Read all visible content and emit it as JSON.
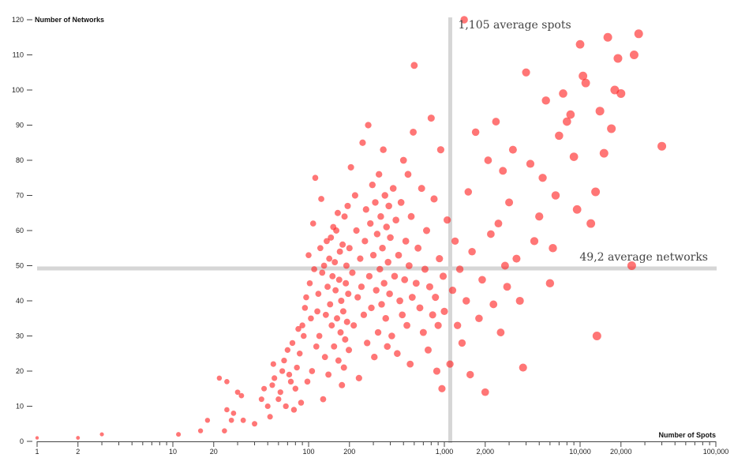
{
  "chart_data": {
    "type": "scatter",
    "title": "",
    "xlabel": "Number of Spots",
    "ylabel": "Number of Networks",
    "x_scale": "log",
    "xlim": [
      1,
      100000
    ],
    "ylim": [
      0,
      120
    ],
    "x_ticks": [
      {
        "value": 1,
        "label": "1"
      },
      {
        "value": 2,
        "label": "2"
      },
      {
        "value": 10,
        "label": "10"
      },
      {
        "value": 20,
        "label": "20"
      },
      {
        "value": 100,
        "label": "100"
      },
      {
        "value": 200,
        "label": "200"
      },
      {
        "value": 1000,
        "label": "1,000"
      },
      {
        "value": 2000,
        "label": "2,000"
      },
      {
        "value": 10000,
        "label": "10,000"
      },
      {
        "value": 20000,
        "label": "20,000"
      },
      {
        "value": 100000,
        "label": "100,000"
      }
    ],
    "y_ticks": [
      0,
      10,
      20,
      30,
      40,
      50,
      60,
      70,
      80,
      90,
      100,
      110,
      120
    ],
    "grid": false,
    "annotations": [
      {
        "text": "1,105 average spots",
        "axis": "x",
        "value": 1105
      },
      {
        "text": "49,2 average networks",
        "axis": "y",
        "value": 49.2
      }
    ],
    "colors": {
      "point": "#ff2222",
      "reference_line": "#d6d6d6"
    },
    "points": [
      [
        1,
        1
      ],
      [
        2,
        1
      ],
      [
        3,
        2
      ],
      [
        11,
        2
      ],
      [
        16,
        3
      ],
      [
        18,
        6
      ],
      [
        24,
        3
      ],
      [
        22,
        18
      ],
      [
        25,
        17
      ],
      [
        25,
        9
      ],
      [
        27,
        6
      ],
      [
        30,
        14
      ],
      [
        28,
        8
      ],
      [
        32,
        13
      ],
      [
        33,
        6
      ],
      [
        40,
        5
      ],
      [
        45,
        12
      ],
      [
        47,
        15
      ],
      [
        50,
        10
      ],
      [
        52,
        7
      ],
      [
        54,
        16
      ],
      [
        56,
        18
      ],
      [
        55,
        22
      ],
      [
        60,
        12
      ],
      [
        62,
        14
      ],
      [
        64,
        20
      ],
      [
        66,
        23
      ],
      [
        68,
        10
      ],
      [
        70,
        26
      ],
      [
        72,
        19
      ],
      [
        74,
        17
      ],
      [
        76,
        28
      ],
      [
        78,
        9
      ],
      [
        80,
        15
      ],
      [
        82,
        21
      ],
      [
        84,
        32
      ],
      [
        86,
        25
      ],
      [
        88,
        11
      ],
      [
        90,
        33
      ],
      [
        92,
        30
      ],
      [
        94,
        38
      ],
      [
        96,
        41
      ],
      [
        98,
        17
      ],
      [
        100,
        53
      ],
      [
        102,
        45
      ],
      [
        104,
        35
      ],
      [
        106,
        20
      ],
      [
        108,
        62
      ],
      [
        110,
        49
      ],
      [
        112,
        75
      ],
      [
        114,
        27
      ],
      [
        116,
        37
      ],
      [
        118,
        42
      ],
      [
        120,
        30
      ],
      [
        122,
        55
      ],
      [
        124,
        69
      ],
      [
        126,
        48
      ],
      [
        128,
        12
      ],
      [
        130,
        50
      ],
      [
        132,
        24
      ],
      [
        134,
        36
      ],
      [
        136,
        57
      ],
      [
        138,
        44
      ],
      [
        140,
        19
      ],
      [
        142,
        52
      ],
      [
        144,
        39
      ],
      [
        146,
        58
      ],
      [
        148,
        33
      ],
      [
        150,
        47
      ],
      [
        152,
        61
      ],
      [
        154,
        27
      ],
      [
        156,
        51
      ],
      [
        158,
        43
      ],
      [
        160,
        60
      ],
      [
        162,
        35
      ],
      [
        164,
        65
      ],
      [
        166,
        23
      ],
      [
        168,
        46
      ],
      [
        170,
        54
      ],
      [
        172,
        31
      ],
      [
        174,
        40
      ],
      [
        176,
        16
      ],
      [
        178,
        56
      ],
      [
        180,
        37
      ],
      [
        182,
        21
      ],
      [
        184,
        64
      ],
      [
        186,
        29
      ],
      [
        188,
        45
      ],
      [
        190,
        50
      ],
      [
        192,
        34
      ],
      [
        194,
        67
      ],
      [
        196,
        42
      ],
      [
        198,
        26
      ],
      [
        200,
        55
      ],
      [
        205,
        78
      ],
      [
        210,
        48
      ],
      [
        215,
        33
      ],
      [
        220,
        70
      ],
      [
        225,
        60
      ],
      [
        230,
        41
      ],
      [
        235,
        18
      ],
      [
        240,
        52
      ],
      [
        245,
        44
      ],
      [
        250,
        85
      ],
      [
        255,
        36
      ],
      [
        260,
        57
      ],
      [
        265,
        66
      ],
      [
        270,
        28
      ],
      [
        275,
        90
      ],
      [
        280,
        47
      ],
      [
        285,
        62
      ],
      [
        290,
        38
      ],
      [
        295,
        73
      ],
      [
        300,
        53
      ],
      [
        305,
        24
      ],
      [
        310,
        68
      ],
      [
        315,
        43
      ],
      [
        320,
        59
      ],
      [
        325,
        31
      ],
      [
        330,
        76
      ],
      [
        335,
        49
      ],
      [
        340,
        64
      ],
      [
        345,
        39
      ],
      [
        350,
        55
      ],
      [
        355,
        83
      ],
      [
        360,
        45
      ],
      [
        365,
        70
      ],
      [
        370,
        35
      ],
      [
        375,
        61
      ],
      [
        380,
        27
      ],
      [
        385,
        51
      ],
      [
        390,
        67
      ],
      [
        395,
        42
      ],
      [
        400,
        58
      ],
      [
        410,
        30
      ],
      [
        420,
        72
      ],
      [
        430,
        47
      ],
      [
        440,
        63
      ],
      [
        450,
        25
      ],
      [
        460,
        53
      ],
      [
        470,
        40
      ],
      [
        480,
        68
      ],
      [
        490,
        36
      ],
      [
        500,
        80
      ],
      [
        510,
        46
      ],
      [
        520,
        57
      ],
      [
        530,
        33
      ],
      [
        540,
        76
      ],
      [
        550,
        50
      ],
      [
        560,
        22
      ],
      [
        570,
        64
      ],
      [
        580,
        41
      ],
      [
        590,
        88
      ],
      [
        600,
        107
      ],
      [
        620,
        45
      ],
      [
        640,
        55
      ],
      [
        660,
        38
      ],
      [
        680,
        72
      ],
      [
        700,
        31
      ],
      [
        720,
        49
      ],
      [
        740,
        60
      ],
      [
        760,
        26
      ],
      [
        780,
        44
      ],
      [
        800,
        92
      ],
      [
        820,
        36
      ],
      [
        840,
        69
      ],
      [
        860,
        41
      ],
      [
        880,
        20
      ],
      [
        900,
        33
      ],
      [
        920,
        52
      ],
      [
        940,
        83
      ],
      [
        960,
        15
      ],
      [
        980,
        47
      ],
      [
        1000,
        37
      ],
      [
        1050,
        63
      ],
      [
        1100,
        22
      ],
      [
        1150,
        43
      ],
      [
        1200,
        57
      ],
      [
        1250,
        33
      ],
      [
        1300,
        49
      ],
      [
        1350,
        28
      ],
      [
        1400,
        120
      ],
      [
        1450,
        40
      ],
      [
        1500,
        71
      ],
      [
        1550,
        19
      ],
      [
        1600,
        54
      ],
      [
        1700,
        88
      ],
      [
        1800,
        35
      ],
      [
        1900,
        46
      ],
      [
        2000,
        14
      ],
      [
        2100,
        80
      ],
      [
        2200,
        59
      ],
      [
        2300,
        39
      ],
      [
        2400,
        91
      ],
      [
        2500,
        62
      ],
      [
        2600,
        31
      ],
      [
        2700,
        77
      ],
      [
        2800,
        50
      ],
      [
        2900,
        44
      ],
      [
        3000,
        68
      ],
      [
        3200,
        83
      ],
      [
        3400,
        52
      ],
      [
        3600,
        40
      ],
      [
        3800,
        21
      ],
      [
        4000,
        105
      ],
      [
        4300,
        79
      ],
      [
        4600,
        57
      ],
      [
        5000,
        64
      ],
      [
        5300,
        75
      ],
      [
        5600,
        97
      ],
      [
        6000,
        45
      ],
      [
        6300,
        55
      ],
      [
        6600,
        70
      ],
      [
        7000,
        87
      ],
      [
        7500,
        99
      ],
      [
        8000,
        91
      ],
      [
        8500,
        93
      ],
      [
        9000,
        81
      ],
      [
        9500,
        66
      ],
      [
        10000,
        113
      ],
      [
        10500,
        104
      ],
      [
        11000,
        102
      ],
      [
        12000,
        62
      ],
      [
        13000,
        71
      ],
      [
        13300,
        30
      ],
      [
        14000,
        94
      ],
      [
        15000,
        82
      ],
      [
        16000,
        115
      ],
      [
        17000,
        89
      ],
      [
        18000,
        100
      ],
      [
        19000,
        109
      ],
      [
        20000,
        99
      ],
      [
        24000,
        50
      ],
      [
        25000,
        110
      ],
      [
        27000,
        116
      ],
      [
        40000,
        84
      ]
    ]
  }
}
